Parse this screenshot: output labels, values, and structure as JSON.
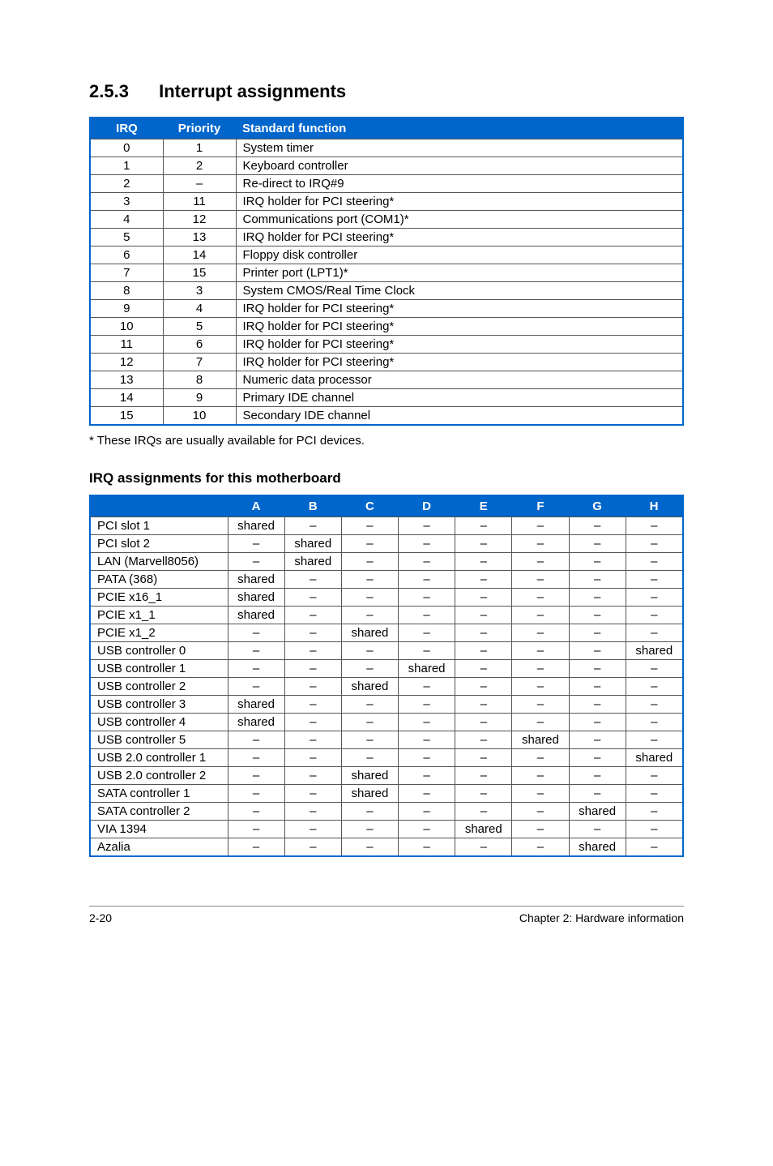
{
  "heading": {
    "number": "2.5.3",
    "title": "Interrupt assignments"
  },
  "table1": {
    "headers": [
      "IRQ",
      "Priority",
      "Standard function"
    ],
    "rows": [
      [
        "0",
        "1",
        "System timer"
      ],
      [
        "1",
        "2",
        "Keyboard controller"
      ],
      [
        "2",
        "–",
        "Re-direct to IRQ#9"
      ],
      [
        "3",
        "11",
        "IRQ holder for PCI steering*"
      ],
      [
        "4",
        "12",
        "Communications port (COM1)*"
      ],
      [
        "5",
        "13",
        "IRQ holder for PCI steering*"
      ],
      [
        "6",
        "14",
        "Floppy disk controller"
      ],
      [
        "7",
        "15",
        "Printer port (LPT1)*"
      ],
      [
        "8",
        "3",
        "System CMOS/Real Time Clock"
      ],
      [
        "9",
        "4",
        "IRQ holder for PCI steering*"
      ],
      [
        "10",
        "5",
        "IRQ holder for PCI steering*"
      ],
      [
        "11",
        "6",
        "IRQ holder for PCI steering*"
      ],
      [
        "12",
        "7",
        "IRQ holder for PCI steering*"
      ],
      [
        "13",
        "8",
        "Numeric data processor"
      ],
      [
        "14",
        "9",
        "Primary IDE channel"
      ],
      [
        "15",
        "10",
        "Secondary IDE channel"
      ]
    ]
  },
  "footnote": "* These IRQs are usually available for PCI devices.",
  "sub_heading": "IRQ assignments for this motherboard",
  "table2": {
    "headers": [
      "",
      "A",
      "B",
      "C",
      "D",
      "E",
      "F",
      "G",
      "H"
    ],
    "rows": [
      [
        "PCI slot 1",
        "shared",
        "–",
        "–",
        "–",
        "–",
        "–",
        "–",
        "–"
      ],
      [
        "PCI slot 2",
        "–",
        "shared",
        "–",
        "–",
        "–",
        "–",
        "–",
        "–"
      ],
      [
        "LAN (Marvell8056)",
        "–",
        "shared",
        "–",
        "–",
        "–",
        "–",
        "–",
        "–"
      ],
      [
        "PATA (368)",
        "shared",
        "–",
        "–",
        "–",
        "–",
        "–",
        "–",
        "–"
      ],
      [
        "PCIE x16_1",
        "shared",
        "–",
        "–",
        "–",
        "–",
        "–",
        "–",
        "–"
      ],
      [
        "PCIE x1_1",
        "shared",
        "–",
        "–",
        "–",
        "–",
        "–",
        "–",
        "–"
      ],
      [
        "PCIE x1_2",
        "–",
        "–",
        "shared",
        "–",
        "–",
        "–",
        "–",
        "–"
      ],
      [
        "USB controller 0",
        "–",
        "–",
        "–",
        "–",
        "–",
        "–",
        "–",
        "shared"
      ],
      [
        "USB controller 1",
        "–",
        "–",
        "–",
        "shared",
        "–",
        "–",
        "–",
        "–"
      ],
      [
        "USB controller 2",
        "–",
        "–",
        "shared",
        "–",
        "–",
        "–",
        "–",
        "–"
      ],
      [
        "USB controller 3",
        "shared",
        "–",
        "–",
        "–",
        "–",
        "–",
        "–",
        "–"
      ],
      [
        "USB controller 4",
        "shared",
        "–",
        "–",
        "–",
        "–",
        "–",
        "–",
        "–"
      ],
      [
        "USB controller 5",
        "–",
        "–",
        "–",
        "–",
        "–",
        "shared",
        "–",
        "–"
      ],
      [
        "USB 2.0 controller 1",
        "–",
        "–",
        "–",
        "–",
        "–",
        "–",
        "–",
        "shared"
      ],
      [
        "USB 2.0 controller 2",
        "–",
        "–",
        "shared",
        "–",
        "–",
        "–",
        "–",
        "–"
      ],
      [
        "SATA controller 1",
        "–",
        "–",
        "shared",
        "–",
        "–",
        "–",
        "–",
        "–"
      ],
      [
        "SATA controller 2",
        "–",
        "–",
        "–",
        "–",
        "–",
        "–",
        "shared",
        "–"
      ],
      [
        "VIA 1394",
        "–",
        "–",
        "–",
        "–",
        "shared",
        "–",
        "–",
        "–"
      ],
      [
        "Azalia",
        "–",
        "–",
        "–",
        "–",
        "–",
        "–",
        "shared",
        "–"
      ]
    ]
  },
  "footer": {
    "left": "2-20",
    "right": "Chapter 2: Hardware information"
  },
  "colors": {
    "header_bg": "#0066cc",
    "header_text": "#ffffff",
    "border": "#0066cc",
    "cell_border": "#555555",
    "text": "#000000",
    "background": "#ffffff"
  }
}
